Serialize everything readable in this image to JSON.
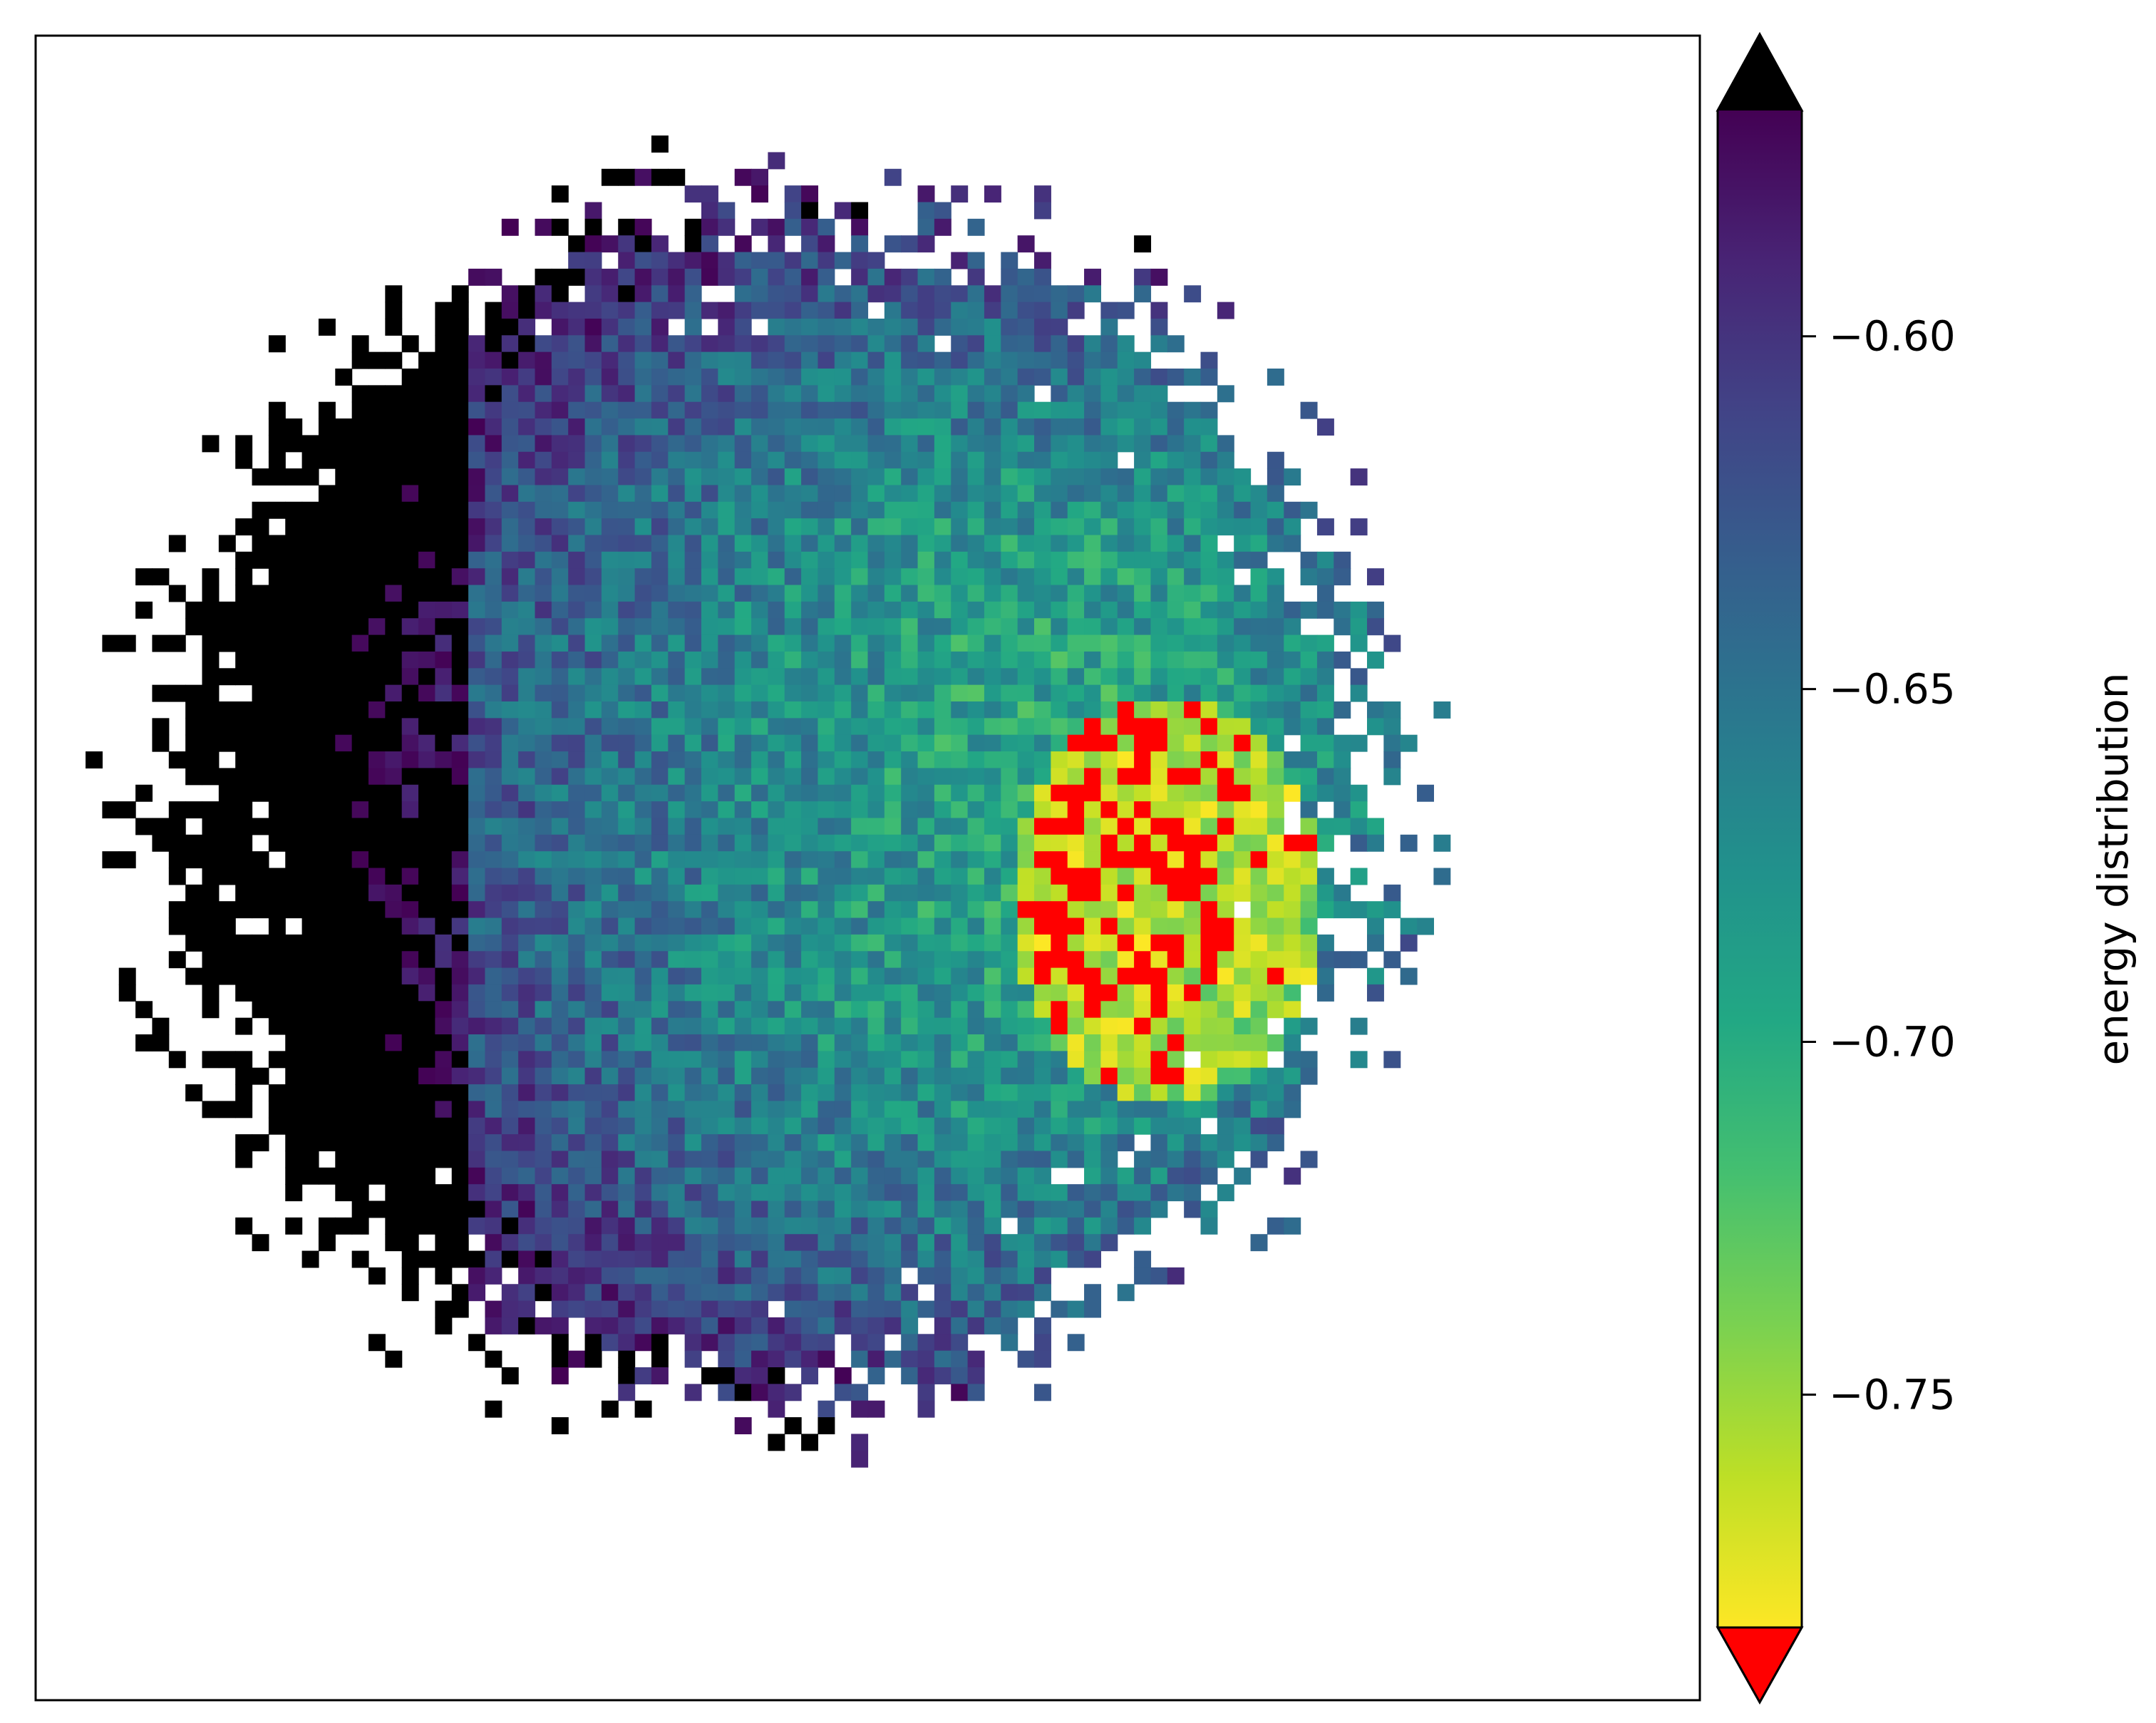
{
  "chart_data": {
    "type": "heatmap",
    "title": "",
    "xlabel": "",
    "ylabel": "",
    "colormap": "viridis_r",
    "under_color": "#ff0000",
    "over_color": "#000000",
    "nan_color": "#ffffff",
    "colorbar": {
      "label": "energy distribution",
      "vmin": -0.783,
      "vmax": -0.568,
      "extend": "both",
      "orientation": "vertical",
      "ticks": [
        -0.6,
        -0.65,
        -0.7,
        -0.75
      ],
      "tick_labels": [
        "−0.60",
        "−0.65",
        "−0.70",
        "−0.75"
      ]
    },
    "field": {
      "grid_size": 100,
      "data_center": [
        0.44,
        0.46
      ],
      "data_radius": 0.36,
      "description_values": {
        "center_value": -0.67,
        "right_side_value": -0.79,
        "left_edge_value": -0.56
      }
    }
  }
}
